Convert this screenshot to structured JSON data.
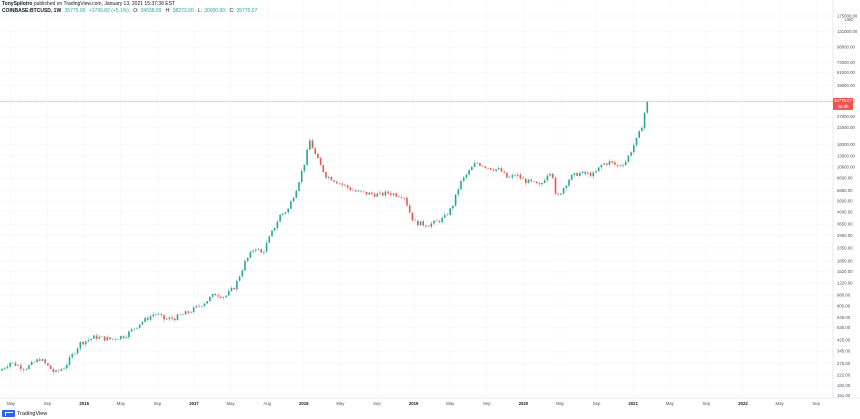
{
  "header": {
    "publisher_line": "TonySpilotro published on TradingView.com, January 13, 2021 15:37:38 EST",
    "publisher_name": "TonySpilotro",
    "publisher_rest": " published on TradingView.com, January 13, 2021 15:37:38 EST",
    "symbol": "COINBASE:BTCUSD, 1W",
    "ohlc": [
      {
        "label": "",
        "value": "35775.00"
      },
      {
        "label": "",
        "value": "+1736.82 (+5.1%)"
      },
      {
        "label": "O:",
        "value": "34038.09"
      },
      {
        "label": "H:",
        "value": "38273.00"
      },
      {
        "label": "L:",
        "value": "30000.00"
      },
      {
        "label": "C:",
        "value": "35775.07"
      }
    ]
  },
  "price_tag": {
    "value": "35775.07",
    "countdown": "4d 8h",
    "color": "#ef5350"
  },
  "currency_label": "USD",
  "colors": {
    "up": "#26a69a",
    "down": "#ef5350",
    "grid": "#f0f3fa",
    "axis_text": "#50535e"
  },
  "logo_text": "TradingView",
  "chart_data": {
    "type": "candlestick",
    "scale": "log",
    "y_range": [
      150,
      175000
    ],
    "y_ticks": [
      "175000.00",
      "131000.00",
      "98000.00",
      "74000.00",
      "61000.00",
      "48000.00",
      "36000.00",
      "27000.00",
      "22000.00",
      "16000.00",
      "13000.00",
      "10600.00",
      "8600.00",
      "6850.00",
      "5600.00",
      "4600.00",
      "3650.00",
      "2950.00",
      "2350.00",
      "1850.00",
      "1520.00",
      "1220.00",
      "980.00",
      "800.00",
      "645.00",
      "535.00",
      "425.00",
      "345.00",
      "275.00",
      "222.00",
      "182.00",
      "151.00"
    ],
    "x_ticks": [
      {
        "label": "May",
        "bold": false
      },
      {
        "label": "Sep",
        "bold": false
      },
      {
        "label": "2016",
        "bold": true
      },
      {
        "label": "May",
        "bold": false
      },
      {
        "label": "Sep",
        "bold": false
      },
      {
        "label": "2017",
        "bold": true
      },
      {
        "label": "May",
        "bold": false
      },
      {
        "label": "Aug",
        "bold": false
      },
      {
        "label": "2018",
        "bold": true
      },
      {
        "label": "May",
        "bold": false
      },
      {
        "label": "Sep",
        "bold": false
      },
      {
        "label": "2019",
        "bold": true
      },
      {
        "label": "May",
        "bold": false
      },
      {
        "label": "Sep",
        "bold": false
      },
      {
        "label": "2020",
        "bold": true
      },
      {
        "label": "May",
        "bold": false
      },
      {
        "label": "Sep",
        "bold": false
      },
      {
        "label": "2021",
        "bold": true
      },
      {
        "label": "May",
        "bold": false
      },
      {
        "label": "Sep",
        "bold": false
      },
      {
        "label": "2022",
        "bold": true
      },
      {
        "label": "May",
        "bold": false
      },
      {
        "label": "Sep",
        "bold": false
      }
    ],
    "current_price": 35775.07,
    "path_points": [
      [
        0,
        240
      ],
      [
        10,
        280
      ],
      [
        25,
        250
      ],
      [
        40,
        300
      ],
      [
        55,
        230
      ],
      [
        65,
        260
      ],
      [
        80,
        400
      ],
      [
        95,
        450
      ],
      [
        110,
        430
      ],
      [
        125,
        460
      ],
      [
        140,
        580
      ],
      [
        155,
        700
      ],
      [
        165,
        620
      ],
      [
        175,
        640
      ],
      [
        190,
        720
      ],
      [
        205,
        860
      ],
      [
        215,
        1000
      ],
      [
        225,
        950
      ],
      [
        235,
        1150
      ],
      [
        245,
        1800
      ],
      [
        255,
        2400
      ],
      [
        262,
        2100
      ],
      [
        270,
        2900
      ],
      [
        280,
        4300
      ],
      [
        288,
        4800
      ],
      [
        296,
        7000
      ],
      [
        304,
        11000
      ],
      [
        310,
        17500
      ],
      [
        314,
        14000
      ],
      [
        320,
        11000
      ],
      [
        326,
        9000
      ],
      [
        332,
        8500
      ],
      [
        340,
        7800
      ],
      [
        348,
        7200
      ],
      [
        356,
        6700
      ],
      [
        364,
        6500
      ],
      [
        372,
        6400
      ],
      [
        380,
        6300
      ],
      [
        388,
        6550
      ],
      [
        396,
        6350
      ],
      [
        404,
        6200
      ],
      [
        410,
        4500
      ],
      [
        414,
        3800
      ],
      [
        420,
        3700
      ],
      [
        428,
        3600
      ],
      [
        436,
        3800
      ],
      [
        444,
        4100
      ],
      [
        452,
        5000
      ],
      [
        460,
        7800
      ],
      [
        468,
        9500
      ],
      [
        476,
        11500
      ],
      [
        484,
        10800
      ],
      [
        492,
        10300
      ],
      [
        500,
        10000
      ],
      [
        508,
        8500
      ],
      [
        516,
        9200
      ],
      [
        524,
        8200
      ],
      [
        532,
        7900
      ],
      [
        540,
        7400
      ],
      [
        548,
        9500
      ],
      [
        552,
        10000
      ],
      [
        556,
        5800
      ],
      [
        562,
        6900
      ],
      [
        570,
        8700
      ],
      [
        578,
        9400
      ],
      [
        586,
        9300
      ],
      [
        594,
        9200
      ],
      [
        602,
        11100
      ],
      [
        610,
        11600
      ],
      [
        618,
        10700
      ],
      [
        626,
        11800
      ],
      [
        634,
        16000
      ],
      [
        638,
        18500
      ],
      [
        642,
        23000
      ],
      [
        646,
        33000
      ],
      [
        648,
        35775
      ]
    ]
  }
}
